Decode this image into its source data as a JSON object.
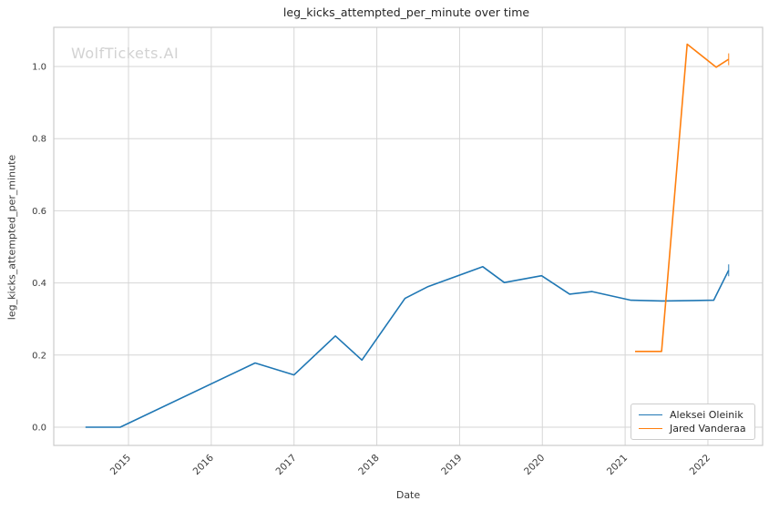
{
  "chart_data": {
    "type": "line",
    "title": "leg_kicks_attempted_per_minute over time",
    "xlabel": "Date",
    "ylabel": "leg_kicks_attempted_per_minute",
    "watermark": "WolfTickets.AI",
    "grid": true,
    "legend_position": "lower right",
    "xlim": [
      2014.097,
      2022.661
    ],
    "ylim": [
      -0.0505,
      1.1086
    ],
    "x_ticks": [
      2015,
      2016,
      2017,
      2018,
      2019,
      2020,
      2021,
      2022
    ],
    "y_ticks": [
      0.0,
      0.2,
      0.4,
      0.6,
      0.8,
      1.0
    ],
    "y_tick_labels": [
      "0.0",
      "0.2",
      "0.4",
      "0.6",
      "0.8",
      "1.0"
    ],
    "series": [
      {
        "name": "Aleksei Oleinik",
        "color": "#1f77b4",
        "x": [
          2014.48,
          2014.9,
          2016.53,
          2017.0,
          2017.5,
          2017.82,
          2018.34,
          2018.62,
          2019.28,
          2019.54,
          2019.99,
          2020.33,
          2020.6,
          2021.07,
          2021.45,
          2022.07,
          2022.25
        ],
        "y": [
          0.0,
          0.0,
          0.178,
          0.145,
          0.253,
          0.186,
          0.357,
          0.39,
          0.445,
          0.401,
          0.42,
          0.369,
          0.376,
          0.352,
          0.35,
          0.352,
          0.435
        ]
      },
      {
        "name": "Jared Vanderaa",
        "color": "#ff7f0e",
        "x": [
          2021.12,
          2021.44,
          2021.75,
          2022.1,
          2022.25
        ],
        "y": [
          0.21,
          0.21,
          1.062,
          0.998,
          1.02
        ]
      }
    ],
    "colors": {
      "grid": "#d6d6d6",
      "plot_border": "#cccccc",
      "tick_text": "#3a3a3a",
      "title_text": "#262626",
      "watermark_text": "#d2d2d2",
      "background": "#ffffff"
    }
  }
}
